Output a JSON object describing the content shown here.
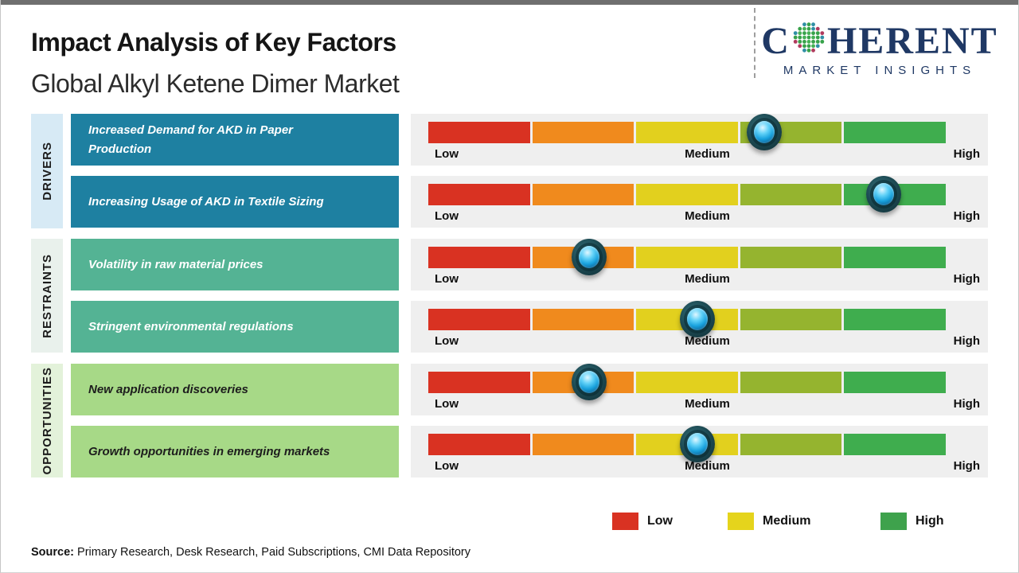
{
  "page": {
    "title": "Impact Analysis of Key Factors",
    "subtitle": "Global Alkyl Ketene Dimer Market",
    "source_label": "Source:",
    "source_text": " Primary Research, Desk Research, Paid Subscriptions, CMI Data Repository"
  },
  "logo": {
    "brand_prefix": "C",
    "brand_suffix": "HERENT",
    "brand_sub": "MARKET INSIGHTS",
    "brand_color": "#1f3864",
    "globe_icon": "dotted-globe"
  },
  "chart_data": {
    "type": "heatmap",
    "description": "Impact-scale slider chart: each factor has a marker positioned along a Low-to-Medium-to-High gradient bar",
    "scale_labels": [
      "Low",
      "Medium",
      "High"
    ],
    "track_bg": "#efefef",
    "segment_colors": [
      "#d93222",
      "#f08a1d",
      "#e2d01e",
      "#95b42f",
      "#3fad4e"
    ],
    "groups": [
      {
        "name": "DRIVERS",
        "strip_color": "#d7eaf5",
        "box_color": "#1e80a1",
        "text_color": "#ffffff",
        "factors": [
          {
            "label": "Increased Demand for AKD in Paper Production",
            "label_lines": [
              "Increased Demand for AKD in Paper",
              "Production"
            ],
            "impact_pct": 65,
            "impact_level": "Medium-High"
          },
          {
            "label": "Increasing Usage of AKD in Textile Sizing",
            "impact_pct": 88,
            "impact_level": "High"
          }
        ]
      },
      {
        "name": "RESTRAINTS",
        "strip_color": "#e9f1ec",
        "box_color": "#54b394",
        "text_color": "#ffffff",
        "factors": [
          {
            "label": "Volatility in raw material prices",
            "impact_pct": 31,
            "impact_level": "Low-Medium"
          },
          {
            "label": "Stringent environmental regulations",
            "impact_pct": 52,
            "impact_level": "Medium"
          }
        ]
      },
      {
        "name": "OPPORTUNITIES",
        "strip_color": "#e3f2da",
        "box_color": "#a7d987",
        "text_color": "#1d1d1d",
        "factors": [
          {
            "label": "New application discoveries",
            "impact_pct": 31,
            "impact_level": "Low-Medium"
          },
          {
            "label": "Growth opportunities in emerging markets",
            "impact_pct": 52,
            "impact_level": "Medium"
          }
        ]
      }
    ],
    "legend": [
      {
        "label": "Low",
        "color": "#d93222"
      },
      {
        "label": "Medium",
        "color": "#e5d41c"
      },
      {
        "label": "High",
        "color": "#3ea24c"
      }
    ]
  }
}
